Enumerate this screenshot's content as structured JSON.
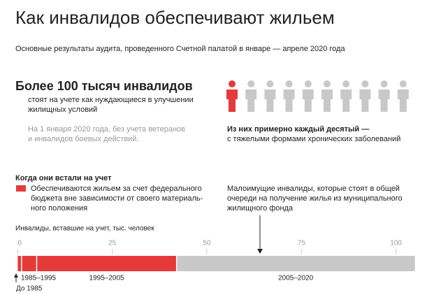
{
  "header": {
    "title": "Как инвалидов обеспечивают жильем",
    "subtitle": "Основные результаты аудита, проведенного Счетной палатой в январе — апреле 2020 года"
  },
  "highlight": {
    "headline": "Более 100 тысяч инвалидов",
    "lines": [
      "стоят на учете как нуждающиеся в улучшении",
      "жилищных условий"
    ],
    "note": [
      "На 1 января 2020 года, без учета ветеранов",
      "и инвалидов боевых действий."
    ]
  },
  "share": {
    "bold": "Из них примерно каждый десятый —",
    "text": "с тяжелыми формами хронических заболеваний"
  },
  "legend": {
    "title": "Когда они встали на учет",
    "lines": [
      "Обеспечиваются жильем за счет федерального",
      "бюджета вне зависимости от своего материаль-",
      "ного положения"
    ]
  },
  "callout": {
    "lines": [
      "Малоимущие инвалиды, которые стоят в общей",
      "очереди на получение жилья из муниципального",
      "жилищного фонда"
    ]
  },
  "chart_data": {
    "type": "stacked-bar",
    "axis_label": "Инвалиды, вставшие на учет, тыс. человек",
    "xlim": [
      -1,
      106
    ],
    "xticks": [
      0,
      25,
      50,
      75,
      100
    ],
    "series": [
      {
        "name": "До 1985",
        "color": "#e63a3a",
        "values": [
          1
        ]
      },
      {
        "name": "1985–1995",
        "color": "#e63a3a",
        "values": [
          4
        ]
      },
      {
        "name": "1995–2005",
        "color": "#e63a3a",
        "values": [
          37
        ]
      },
      {
        "name": "2005–2020",
        "color": "#c8c8c8",
        "values": [
          63
        ]
      }
    ]
  }
}
